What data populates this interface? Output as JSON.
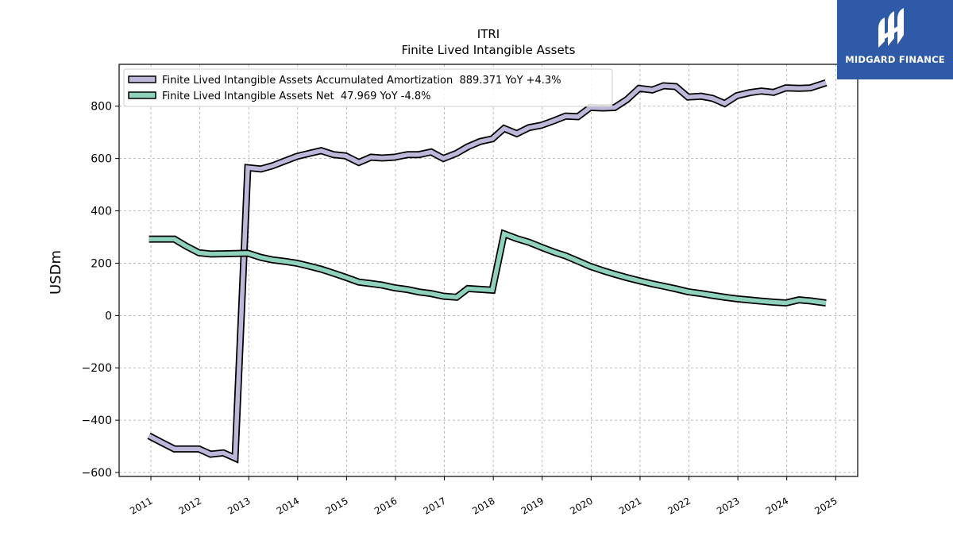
{
  "chart_data": {
    "type": "line",
    "title": "ITRI",
    "subtitle": "Finite Lived Intangible Assets",
    "ylabel": "USDm",
    "xlabel": "",
    "xlim": [
      2010.35,
      2025.45
    ],
    "ylim": [
      -615,
      960
    ],
    "yticks": [
      -600,
      -400,
      -200,
      0,
      200,
      400,
      600,
      800
    ],
    "ytick_labels": [
      "−600",
      "−400",
      "−200",
      "0",
      "200",
      "400",
      "600",
      "800"
    ],
    "xticks": [
      2011,
      2012,
      2013,
      2014,
      2015,
      2016,
      2017,
      2018,
      2019,
      2020,
      2021,
      2022,
      2023,
      2024,
      2025
    ],
    "xtick_labels": [
      "2011",
      "2012",
      "2013",
      "2014",
      "2015",
      "2016",
      "2017",
      "2018",
      "2019",
      "2020",
      "2021",
      "2022",
      "2023",
      "2024",
      "2025"
    ],
    "grid": true,
    "legend_position": "top-left",
    "series": [
      {
        "name": "Finite Lived Intangible Assets Accumulated Amortization  889.371 YoY +4.3%",
        "color": "#bdb8d9",
        "points": [
          [
            2010.96,
            -460
          ],
          [
            2011.22,
            -485
          ],
          [
            2011.48,
            -510
          ],
          [
            2011.72,
            -510
          ],
          [
            2011.98,
            -510
          ],
          [
            2012.22,
            -530
          ],
          [
            2012.48,
            -525
          ],
          [
            2012.72,
            -545
          ],
          [
            2012.98,
            565
          ],
          [
            2013.25,
            560
          ],
          [
            2013.48,
            572
          ],
          [
            2013.73,
            590
          ],
          [
            2013.98,
            608
          ],
          [
            2014.25,
            620
          ],
          [
            2014.48,
            630
          ],
          [
            2014.73,
            615
          ],
          [
            2014.98,
            610
          ],
          [
            2015.25,
            585
          ],
          [
            2015.5,
            605
          ],
          [
            2015.73,
            602
          ],
          [
            2015.98,
            605
          ],
          [
            2016.25,
            615
          ],
          [
            2016.48,
            615
          ],
          [
            2016.73,
            625
          ],
          [
            2016.98,
            600
          ],
          [
            2017.25,
            620
          ],
          [
            2017.48,
            645
          ],
          [
            2017.73,
            665
          ],
          [
            2017.98,
            675
          ],
          [
            2018.22,
            715
          ],
          [
            2018.48,
            695
          ],
          [
            2018.73,
            718
          ],
          [
            2018.98,
            727
          ],
          [
            2019.25,
            745
          ],
          [
            2019.48,
            762
          ],
          [
            2019.73,
            760
          ],
          [
            2019.98,
            795
          ],
          [
            2020.25,
            793
          ],
          [
            2020.48,
            795
          ],
          [
            2020.73,
            825
          ],
          [
            2020.98,
            868
          ],
          [
            2021.25,
            862
          ],
          [
            2021.48,
            878
          ],
          [
            2021.73,
            875
          ],
          [
            2021.98,
            835
          ],
          [
            2022.25,
            838
          ],
          [
            2022.48,
            830
          ],
          [
            2022.73,
            810
          ],
          [
            2022.98,
            840
          ],
          [
            2023.25,
            852
          ],
          [
            2023.48,
            858
          ],
          [
            2023.73,
            853
          ],
          [
            2023.98,
            870
          ],
          [
            2024.25,
            868
          ],
          [
            2024.48,
            870
          ],
          [
            2024.8,
            889.371
          ]
        ]
      },
      {
        "name": "Finite Lived Intangible Assets Net  47.969 YoY -4.8%",
        "color": "#8ed2be",
        "points": [
          [
            2010.96,
            292
          ],
          [
            2011.22,
            292
          ],
          [
            2011.48,
            292
          ],
          [
            2011.72,
            265
          ],
          [
            2011.98,
            240
          ],
          [
            2012.22,
            235
          ],
          [
            2012.48,
            236
          ],
          [
            2012.72,
            237
          ],
          [
            2012.98,
            238
          ],
          [
            2013.25,
            222
          ],
          [
            2013.48,
            213
          ],
          [
            2013.73,
            207
          ],
          [
            2013.98,
            200
          ],
          [
            2014.25,
            188
          ],
          [
            2014.48,
            177
          ],
          [
            2014.73,
            162
          ],
          [
            2014.98,
            146
          ],
          [
            2015.25,
            128
          ],
          [
            2015.5,
            122
          ],
          [
            2015.73,
            116
          ],
          [
            2015.98,
            106
          ],
          [
            2016.25,
            99
          ],
          [
            2016.48,
            90
          ],
          [
            2016.73,
            84
          ],
          [
            2016.98,
            74
          ],
          [
            2017.25,
            70
          ],
          [
            2017.48,
            103
          ],
          [
            2017.73,
            100
          ],
          [
            2017.98,
            97
          ],
          [
            2018.22,
            312
          ],
          [
            2018.48,
            294
          ],
          [
            2018.73,
            280
          ],
          [
            2018.98,
            261
          ],
          [
            2019.25,
            242
          ],
          [
            2019.48,
            228
          ],
          [
            2019.73,
            208
          ],
          [
            2019.98,
            188
          ],
          [
            2020.25,
            171
          ],
          [
            2020.48,
            158
          ],
          [
            2020.73,
            145
          ],
          [
            2020.98,
            133
          ],
          [
            2021.25,
            121
          ],
          [
            2021.48,
            112
          ],
          [
            2021.73,
            102
          ],
          [
            2021.98,
            91
          ],
          [
            2022.25,
            84
          ],
          [
            2022.48,
            77
          ],
          [
            2022.73,
            70
          ],
          [
            2022.98,
            64
          ],
          [
            2023.25,
            59
          ],
          [
            2023.48,
            55
          ],
          [
            2023.73,
            51
          ],
          [
            2023.98,
            48
          ],
          [
            2024.25,
            60
          ],
          [
            2024.48,
            56
          ],
          [
            2024.8,
            47.969
          ]
        ]
      }
    ]
  },
  "logo": {
    "text": "MIDGARD FINANCE",
    "background": "#2f5aa8"
  }
}
